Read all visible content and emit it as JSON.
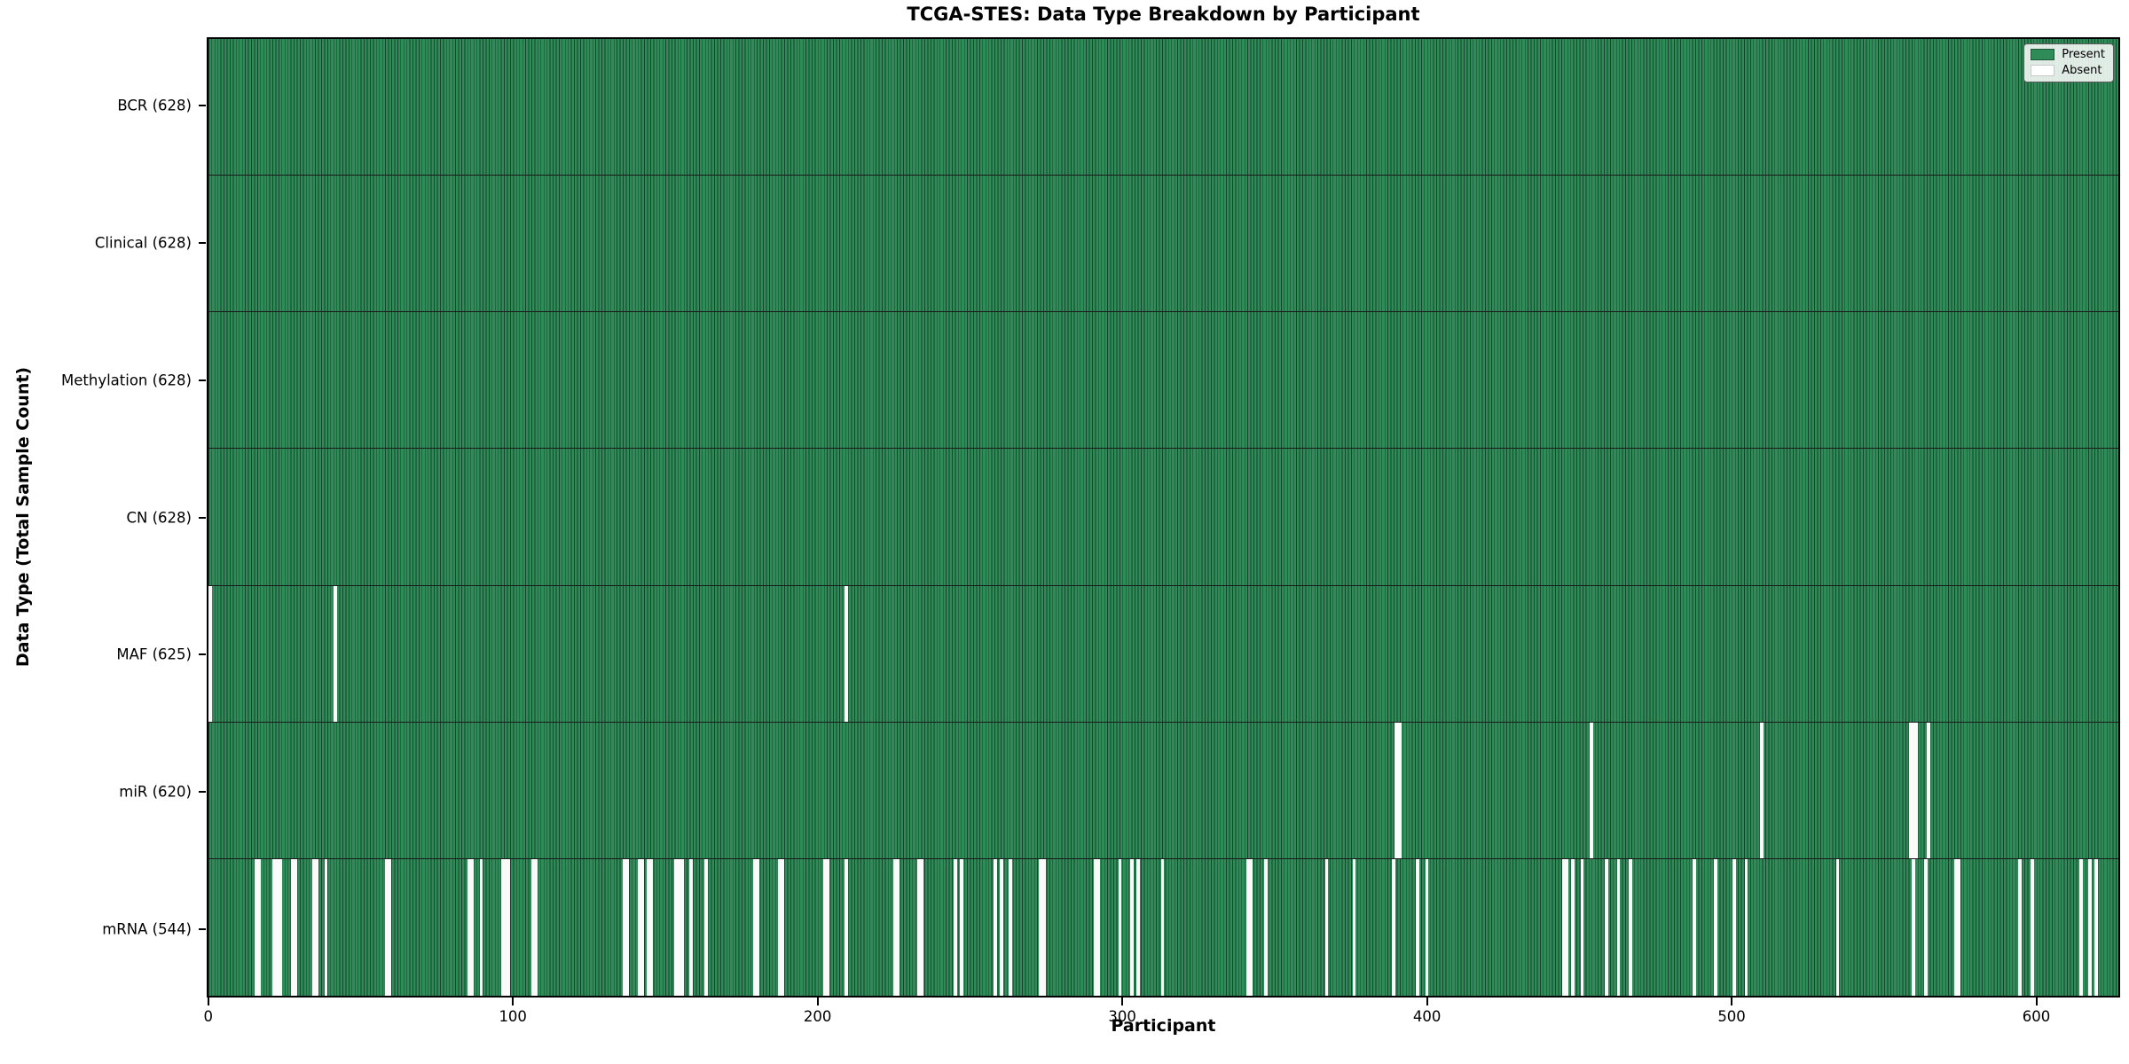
{
  "title": "TCGA-STES: Data Type Breakdown by Participant",
  "xlabel": "Participant",
  "ylabel": "Data Type (Total Sample Count)",
  "legend": {
    "present_label": "Present",
    "absent_label": "Absent"
  },
  "colors": {
    "present": "#2f8b58",
    "cell_edge": "#16432b",
    "absent": "#fafafa",
    "row_separator": "#1a1a1a",
    "spine": "#000000"
  },
  "chart_data": {
    "type": "heatmap",
    "title": "TCGA-STES: Data Type Breakdown by Participant",
    "xlabel": "Participant",
    "ylabel": "Data Type (Total Sample Count)",
    "legend": [
      "Present",
      "Absent"
    ],
    "legend_position": "upper right",
    "n_participants": 628,
    "x_ticks": [
      0,
      100,
      200,
      300,
      400,
      500,
      600
    ],
    "rows": [
      {
        "label": "BCR (628)",
        "data_type": "BCR",
        "present_count": 628,
        "absent_participants": []
      },
      {
        "label": "Clinical (628)",
        "data_type": "Clinical",
        "present_count": 628,
        "absent_participants": []
      },
      {
        "label": "Methylation (628)",
        "data_type": "Methylation",
        "present_count": 628,
        "absent_participants": []
      },
      {
        "label": "CN (628)",
        "data_type": "CN",
        "present_count": 628,
        "absent_participants": []
      },
      {
        "label": "MAF (625)",
        "data_type": "MAF",
        "present_count": 625,
        "absent_participants": [
          0,
          41,
          209
        ]
      },
      {
        "label": "miR (620)",
        "data_type": "miR",
        "present_count": 620,
        "absent_participants": [
          390,
          391,
          454,
          510,
          559,
          560,
          561,
          565
        ]
      },
      {
        "label": "mRNA (544)",
        "data_type": "mRNA",
        "present_count": 544,
        "absent_participants": [
          15,
          16,
          21,
          22,
          23,
          27,
          28,
          34,
          35,
          38,
          58,
          59,
          85,
          86,
          89,
          96,
          97,
          98,
          106,
          107,
          136,
          137,
          141,
          142,
          144,
          145,
          153,
          154,
          155,
          158,
          163,
          179,
          180,
          187,
          188,
          202,
          203,
          209,
          225,
          226,
          233,
          234,
          245,
          247,
          258,
          260,
          263,
          273,
          274,
          291,
          292,
          299,
          303,
          305,
          313,
          341,
          342,
          347,
          367,
          376,
          389,
          397,
          400,
          445,
          446,
          448,
          451,
          459,
          463,
          467,
          488,
          495,
          501,
          505,
          535,
          560,
          564,
          574,
          575,
          595,
          599,
          615,
          618,
          620
        ]
      }
    ]
  }
}
